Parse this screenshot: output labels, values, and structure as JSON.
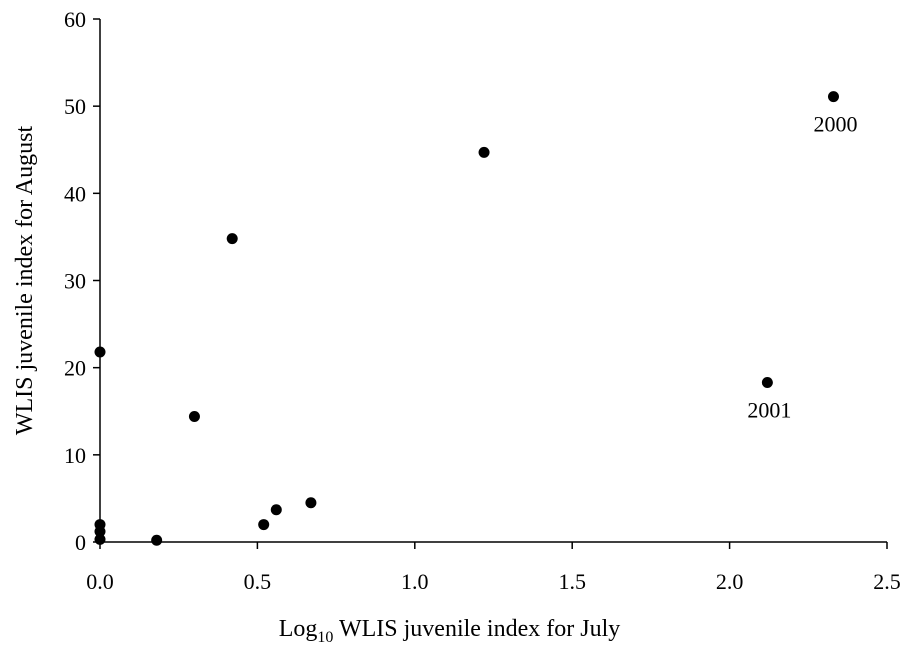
{
  "chart_data": {
    "type": "scatter",
    "xlabel": {
      "prefix": "Log",
      "subscript": "10",
      "rest": " WLIS juvenile index for July"
    },
    "ylabel": "WLIS juvenile index for August",
    "xlim": [
      0,
      2.5
    ],
    "ylim": [
      0,
      60
    ],
    "xticks": [
      0,
      0.5,
      1,
      1.5,
      2,
      2.5
    ],
    "xtick_labels": [
      "0.0",
      "0.5",
      "1.0",
      "1.5",
      "2.0",
      "2.5"
    ],
    "yticks": [
      0,
      10,
      20,
      30,
      40,
      50,
      60
    ],
    "ytick_labels": [
      "0",
      "10",
      "20",
      "30",
      "40",
      "50",
      "60"
    ],
    "grid": false,
    "legend": false,
    "marker_color": "#000000",
    "series": [
      {
        "points": [
          {
            "x": 0.0,
            "y": 21.8
          },
          {
            "x": 0.0,
            "y": 2.0
          },
          {
            "x": 0.0,
            "y": 1.2
          },
          {
            "x": 0.0,
            "y": 0.3
          },
          {
            "x": 0.18,
            "y": 0.2
          },
          {
            "x": 0.3,
            "y": 14.4
          },
          {
            "x": 0.42,
            "y": 34.8
          },
          {
            "x": 0.52,
            "y": 2.0
          },
          {
            "x": 0.56,
            "y": 3.7
          },
          {
            "x": 0.67,
            "y": 4.5
          },
          {
            "x": 1.22,
            "y": 44.7
          },
          {
            "x": 2.12,
            "y": 18.3,
            "label": "2001"
          },
          {
            "x": 2.33,
            "y": 51.1,
            "label": "2000"
          }
        ]
      }
    ]
  }
}
